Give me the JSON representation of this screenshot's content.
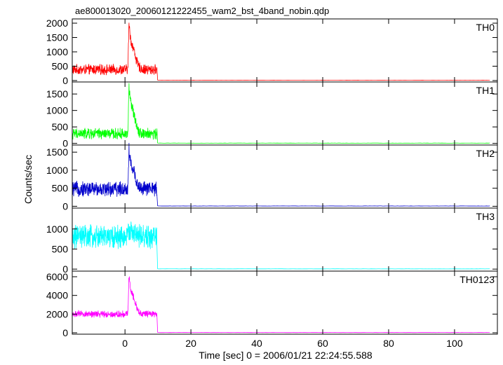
{
  "chart_data": {
    "type": "line",
    "title": "ae800013020_20060121222455_wam2_bst_4band_nobin.qdp",
    "xlabel": "Time [sec] 0 = 2006/01/21 22:24:55.588",
    "ylabel": "Counts/sec",
    "xlim": [
      -16,
      113
    ],
    "xticks": [
      0,
      20,
      40,
      60,
      80,
      100
    ],
    "xtick_labels": [
      "0",
      "20",
      "40",
      "60",
      "80",
      "100"
    ],
    "grid": false,
    "panels": [
      {
        "name": "TH0",
        "color": "#ff0000",
        "ylim": [
          -50,
          2050
        ],
        "yticks": [
          0,
          500,
          1000,
          1500,
          2000
        ],
        "ytick_labels": [
          "0",
          "500",
          "1000",
          "1500",
          "2000"
        ],
        "baseline": 380,
        "noise": 140,
        "peak": 2000,
        "end_level": 10
      },
      {
        "name": "TH1",
        "color": "#00ff00",
        "ylim": [
          -50,
          1780
        ],
        "yticks": [
          0,
          500,
          1000,
          1500
        ],
        "ytick_labels": [
          "0",
          "500",
          "1000",
          "1500"
        ],
        "baseline": 290,
        "noise": 130,
        "peak": 1750,
        "end_level": 8
      },
      {
        "name": "TH2",
        "color": "#0000cc",
        "ylim": [
          -50,
          1620
        ],
        "yticks": [
          0,
          500,
          1000,
          1500
        ],
        "ytick_labels": [
          "0",
          "500",
          "1000",
          "1500"
        ],
        "baseline": 480,
        "noise": 160,
        "peak": 1600,
        "end_level": 8
      },
      {
        "name": "TH3",
        "color": "#00ffff",
        "ylim": [
          -50,
          1450
        ],
        "yticks": [
          0,
          500,
          1000
        ],
        "ytick_labels": [
          "0",
          "500",
          "1000"
        ],
        "baseline": 800,
        "noise": 230,
        "peak": 1100,
        "end_level": 6
      },
      {
        "name": "TH0123",
        "color": "#ff00ff",
        "ylim": [
          -150,
          6300
        ],
        "yticks": [
          0,
          2000,
          4000,
          6000
        ],
        "ytick_labels": [
          "0",
          "2000",
          "4000",
          "6000"
        ],
        "baseline": 2000,
        "noise": 280,
        "peak": 6100,
        "end_level": 30
      }
    ]
  }
}
